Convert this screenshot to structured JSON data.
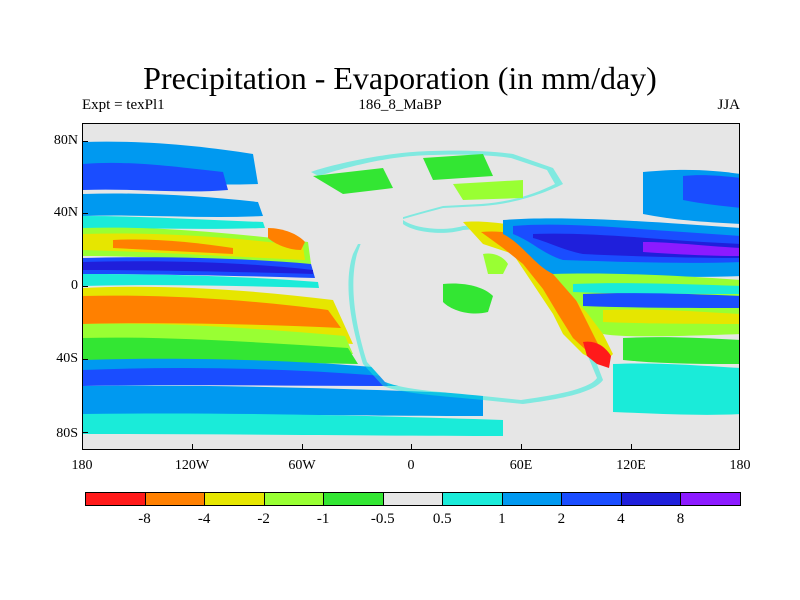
{
  "title": "Precipitation - Evaporation (in mm/day)",
  "subtitle_left": "Expt = texPl1",
  "subtitle_center": "186_8_MaBP",
  "subtitle_right": "JJA",
  "map": {
    "lat_ticks": [
      "80N",
      "40N",
      "0",
      "40S",
      "80S"
    ],
    "lon_ticks": [
      "180",
      "120W",
      "60W",
      "0",
      "60E",
      "120E",
      "180"
    ],
    "land_color": "#e6e6e6"
  },
  "legend": {
    "colors": [
      "#ff1a1a",
      "#ff8000",
      "#e6e600",
      "#99ff33",
      "#33e633",
      "#e6e6e6",
      "#1aebd9",
      "#0099f0",
      "#1a4dff",
      "#1f1fdb",
      "#8c1aff"
    ],
    "labels": [
      "-8",
      "-4",
      "-2",
      "-1",
      "-0.5",
      "0.5",
      "1",
      "2",
      "4",
      "8"
    ]
  }
}
